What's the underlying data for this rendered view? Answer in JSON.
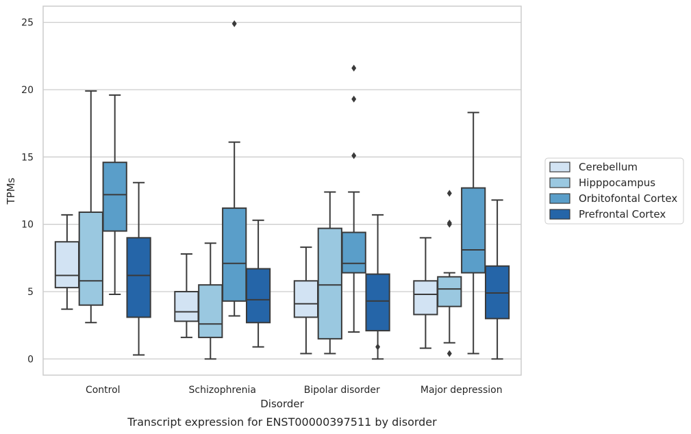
{
  "chart_data": {
    "type": "box",
    "caption": "Transcript expression for ENST00000397511 by disorder",
    "xlabel": "Disorder",
    "ylabel": "TPMs",
    "ylim": [
      -1.2,
      26.2
    ],
    "yticks": [
      0,
      5,
      10,
      15,
      20,
      25
    ],
    "grid": "horizontal",
    "legend_position": "right",
    "categories": [
      "Control",
      "Schizophrenia",
      "Bipolar disorder",
      "Major depression"
    ],
    "series": [
      {
        "name": "Cerebellum",
        "color": "#d2e3f3",
        "boxes": [
          {
            "whislo": 3.7,
            "q1": 5.3,
            "med": 6.2,
            "q3": 8.7,
            "whishi": 10.7,
            "fliers": []
          },
          {
            "whislo": 1.6,
            "q1": 2.8,
            "med": 3.5,
            "q3": 5.0,
            "whishi": 7.8,
            "fliers": []
          },
          {
            "whislo": 0.4,
            "q1": 3.1,
            "med": 4.1,
            "q3": 5.8,
            "whishi": 8.3,
            "fliers": []
          },
          {
            "whislo": 0.8,
            "q1": 3.3,
            "med": 4.8,
            "q3": 5.8,
            "whishi": 9.0,
            "fliers": []
          }
        ]
      },
      {
        "name": "Hipppocampus",
        "color": "#9ac8e0",
        "boxes": [
          {
            "whislo": 2.7,
            "q1": 4.0,
            "med": 5.8,
            "q3": 10.9,
            "whishi": 19.9,
            "fliers": []
          },
          {
            "whislo": 0.0,
            "q1": 1.6,
            "med": 2.6,
            "q3": 5.5,
            "whishi": 8.6,
            "fliers": []
          },
          {
            "whislo": 0.4,
            "q1": 1.5,
            "med": 5.5,
            "q3": 9.7,
            "whishi": 12.4,
            "fliers": []
          },
          {
            "whislo": 1.2,
            "q1": 3.9,
            "med": 5.2,
            "q3": 6.1,
            "whishi": 6.4,
            "fliers": [
              0.4,
              10.0,
              10.1,
              12.3
            ]
          }
        ]
      },
      {
        "name": "Orbitofontal Cortex",
        "color": "#5a9ec9",
        "boxes": [
          {
            "whislo": 4.8,
            "q1": 9.5,
            "med": 12.2,
            "q3": 14.6,
            "whishi": 19.6,
            "fliers": []
          },
          {
            "whislo": 3.2,
            "q1": 4.3,
            "med": 7.1,
            "q3": 11.2,
            "whishi": 16.1,
            "fliers": [
              24.9
            ]
          },
          {
            "whislo": 2.0,
            "q1": 6.4,
            "med": 7.1,
            "q3": 9.4,
            "whishi": 12.4,
            "fliers": [
              15.1,
              19.3,
              21.6
            ]
          },
          {
            "whislo": 0.4,
            "q1": 6.4,
            "med": 8.1,
            "q3": 12.7,
            "whishi": 18.3,
            "fliers": []
          }
        ]
      },
      {
        "name": "Prefrontal Cortex",
        "color": "#2565a8",
        "boxes": [
          {
            "whislo": 0.3,
            "q1": 3.1,
            "med": 6.2,
            "q3": 9.0,
            "whishi": 13.1,
            "fliers": []
          },
          {
            "whislo": 0.9,
            "q1": 2.7,
            "med": 4.4,
            "q3": 6.7,
            "whishi": 10.3,
            "fliers": []
          },
          {
            "whislo": 0.0,
            "q1": 2.1,
            "med": 4.3,
            "q3": 6.3,
            "whishi": 10.7,
            "fliers": [
              0.9
            ]
          },
          {
            "whislo": 0.0,
            "q1": 3.0,
            "med": 4.9,
            "q3": 6.9,
            "whishi": 11.8,
            "fliers": []
          }
        ]
      }
    ]
  }
}
